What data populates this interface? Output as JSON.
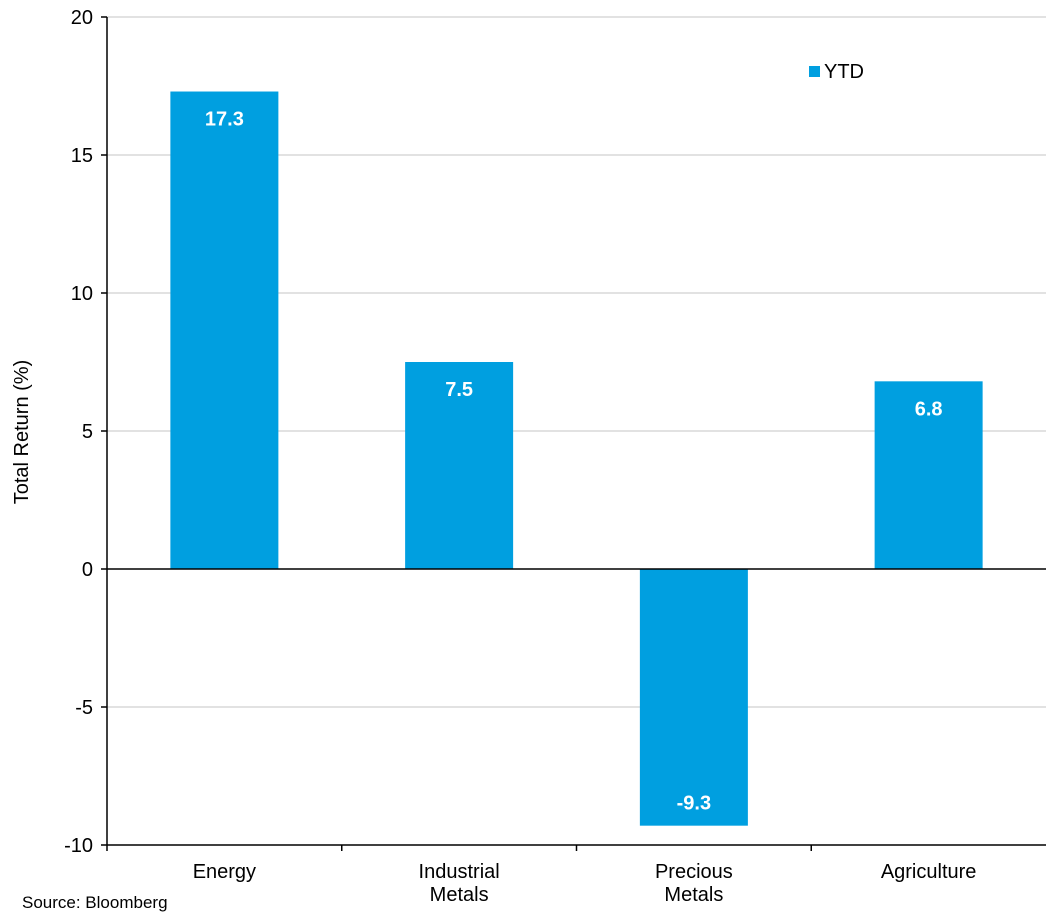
{
  "chart_data": {
    "type": "bar",
    "categories": [
      [
        "Energy"
      ],
      [
        "Industrial",
        "Metals"
      ],
      [
        "Precious",
        "Metals"
      ],
      [
        "Agriculture"
      ]
    ],
    "series": [
      {
        "name": "YTD",
        "values": [
          17.3,
          7.5,
          -9.3,
          6.8
        ],
        "data_labels": [
          "17.3",
          "7.5",
          "-9.3",
          "6.8"
        ]
      }
    ],
    "title": "",
    "xlabel": "",
    "ylabel": "Total Return (%)",
    "ylim": [
      -10,
      20
    ],
    "yticks": [
      20,
      15,
      10,
      5,
      0,
      -5,
      -10
    ],
    "ytick_labels": [
      "20",
      "15",
      "10",
      "5",
      "0",
      "-5",
      "-10"
    ],
    "grid": true,
    "legend": "top-right",
    "colors": {
      "bar": "#009FE0",
      "grid": "#D9D9D9",
      "axis": "#000000"
    }
  },
  "source": "Source:  Bloomberg"
}
